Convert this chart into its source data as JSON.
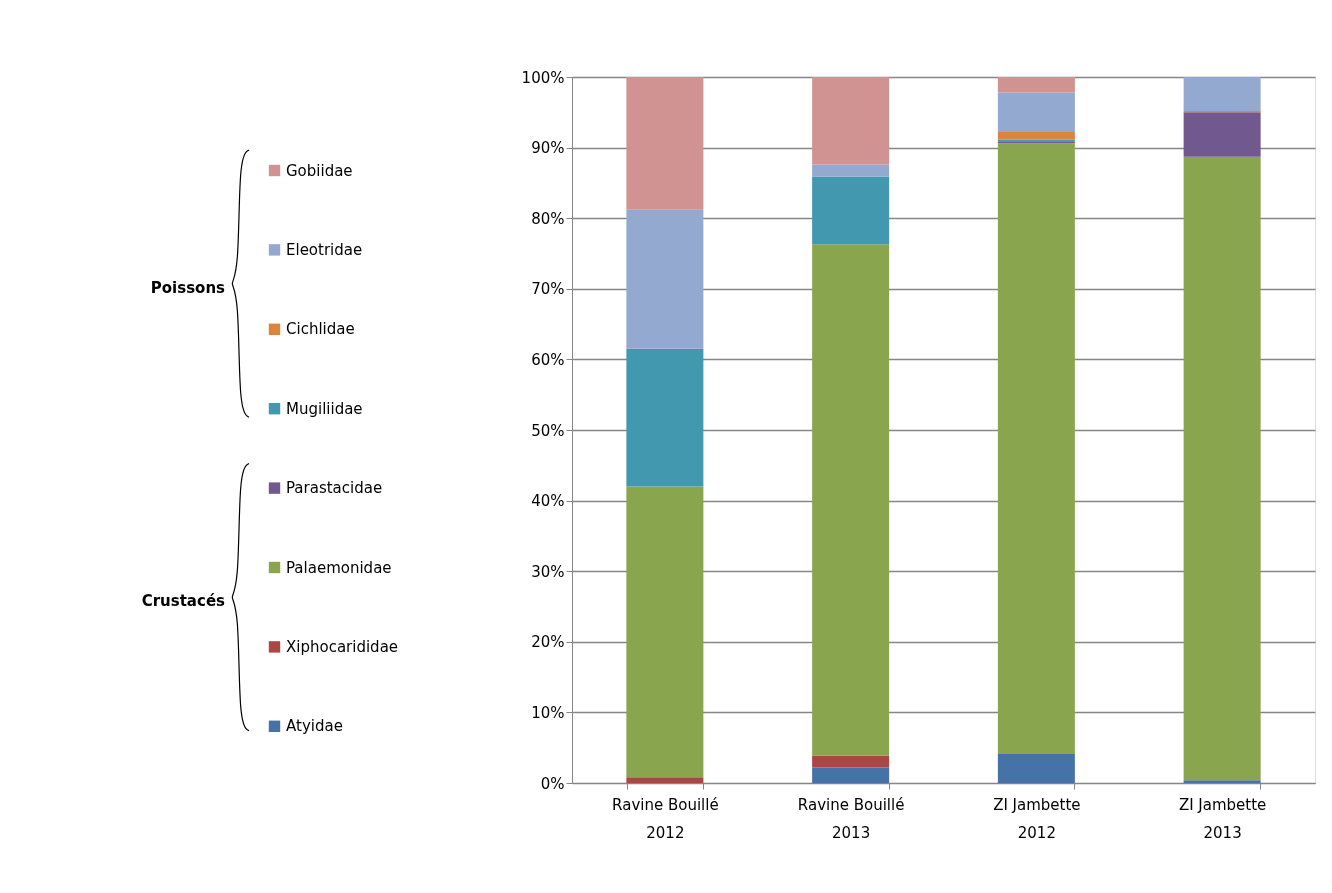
{
  "chart_data": {
    "type": "bar",
    "stacked": true,
    "categories": [
      "Ravine Bouillé\n2012",
      "Ravine Bouillé\n2013",
      "ZI Jambette\n2012",
      "ZI Jambette\n2013"
    ],
    "series": [
      {
        "name": "Atyidae",
        "color": "#4572a7",
        "values": [
          0,
          2.2,
          4.1,
          0.4
        ]
      },
      {
        "name": "Xiphocarididae",
        "color": "#aa4643",
        "values": [
          0.8,
          1.7,
          0,
          0
        ]
      },
      {
        "name": "Palaemonidae",
        "color": "#89a54e",
        "values": [
          41.2,
          72.4,
          86.5,
          88.3
        ]
      },
      {
        "name": "Parastacidae",
        "color": "#71588f",
        "values": [
          0,
          0,
          0.3,
          6.3
        ]
      },
      {
        "name": "Mugiliidae",
        "color": "#4198af",
        "values": [
          19.5,
          9.6,
          0.2,
          0
        ]
      },
      {
        "name": "Cichlidae",
        "color": "#db843d",
        "values": [
          0,
          0,
          1.1,
          0.2
        ]
      },
      {
        "name": "Eleotridae",
        "color": "#93a9cf",
        "values": [
          19.7,
          1.7,
          5.6,
          4.8
        ]
      },
      {
        "name": "Gobiidae",
        "color": "#d19392",
        "values": [
          18.8,
          12.4,
          2.2,
          0
        ]
      }
    ],
    "ylim": [
      0,
      100
    ],
    "yticks": [
      {
        "value": 0,
        "label": "0%"
      },
      {
        "value": 10,
        "label": "10%"
      },
      {
        "value": 20,
        "label": "20%"
      },
      {
        "value": 30,
        "label": "30%"
      },
      {
        "value": 40,
        "label": "40%"
      },
      {
        "value": 50,
        "label": "50%"
      },
      {
        "value": 60,
        "label": "60%"
      },
      {
        "value": 70,
        "label": "70%"
      },
      {
        "value": 80,
        "label": "80%"
      },
      {
        "value": 90,
        "label": "90%"
      },
      {
        "value": 100,
        "label": "100%"
      }
    ],
    "grid": "y",
    "legend": "left",
    "annotations": [
      "Poissons",
      "Crustacés"
    ]
  }
}
